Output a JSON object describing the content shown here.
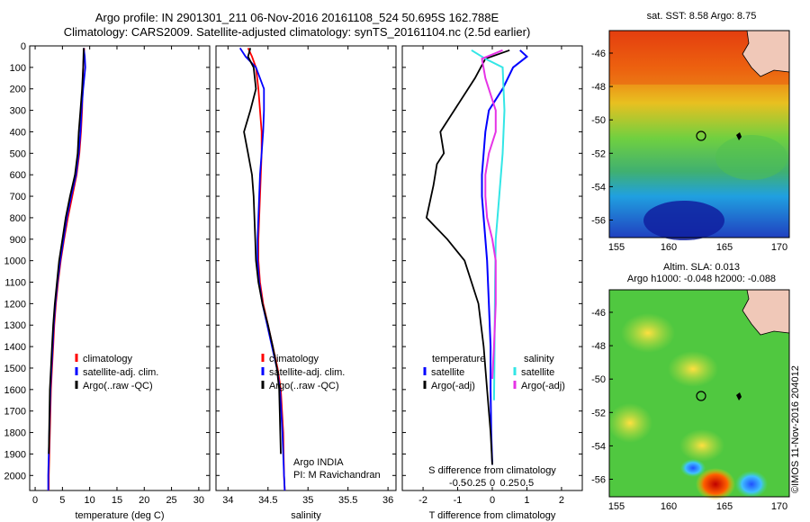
{
  "header": {
    "title_line1": "Argo profile: IN 2901301_211 06-Nov-2016 20161108_524 50.695S 162.788E",
    "title_line2": "Climatology: CARS2009. Satellite-adjusted climatology: synTS_20161104.nc (2.5d earlier)"
  },
  "credit": "©IMOS 11-Nov-2016 204012",
  "colors": {
    "climatology": "#ff0000",
    "satellite": "#0000ff",
    "argo": "#000000",
    "satellite_salinity": "#33e6e6",
    "argo_salinity": "#e633e6"
  },
  "chart_data": [
    {
      "type": "line",
      "id": "temperature",
      "xlabel": "temperature (deg C)",
      "ylabel": "",
      "xlim": [
        -1,
        32
      ],
      "ylim": [
        2070,
        0
      ],
      "xticks": [
        0,
        5,
        10,
        15,
        20,
        25,
        30
      ],
      "yticks": [
        0,
        100,
        200,
        300,
        400,
        500,
        600,
        700,
        800,
        900,
        1000,
        1100,
        1200,
        1300,
        1400,
        1500,
        1600,
        1700,
        1800,
        1900,
        2000
      ],
      "legend": [
        "climatology",
        "satellite-adj. clim.",
        "Argo(..raw -QC)"
      ],
      "legend_position": "lower-right",
      "series": [
        {
          "name": "climatology",
          "color": "#ff0000",
          "x": [
            9.0,
            8.9,
            8.8,
            8.7,
            8.6,
            8.4,
            8.1,
            7.6,
            6.8,
            6.0,
            5.3,
            4.7,
            4.2,
            3.8,
            3.5,
            3.3,
            3.1,
            2.9,
            2.7,
            2.5,
            2.5
          ],
          "y": [
            10,
            50,
            100,
            200,
            300,
            400,
            500,
            600,
            700,
            800,
            900,
            1000,
            1100,
            1200,
            1300,
            1400,
            1500,
            1600,
            1800,
            2000,
            2070
          ]
        },
        {
          "name": "satellite-adj. clim.",
          "color": "#0000ff",
          "x": [
            8.9,
            9.1,
            9.2,
            8.8,
            8.5,
            8.3,
            8.0,
            7.5,
            6.6,
            5.8,
            5.2,
            4.6,
            4.1,
            3.7,
            3.4,
            3.2,
            3.0,
            2.8,
            2.6,
            2.4,
            2.4
          ],
          "y": [
            10,
            50,
            100,
            200,
            300,
            400,
            500,
            600,
            700,
            800,
            900,
            1000,
            1100,
            1200,
            1300,
            1400,
            1500,
            1600,
            1800,
            2000,
            2070
          ]
        },
        {
          "name": "Argo(..raw -QC)",
          "color": "#000000",
          "x": [
            8.9,
            8.8,
            8.6,
            8.3,
            8.0,
            7.8,
            7.3,
            6.4,
            5.6,
            5.0,
            4.4,
            4.0,
            3.6,
            3.3,
            3.1,
            2.9,
            2.7,
            2.5
          ],
          "y": [
            10,
            100,
            200,
            300,
            400,
            500,
            600,
            700,
            800,
            900,
            1000,
            1100,
            1200,
            1300,
            1400,
            1500,
            1600,
            1900
          ]
        }
      ]
    },
    {
      "type": "line",
      "id": "salinity",
      "xlabel": "salinity",
      "xlim": [
        33.85,
        36.1
      ],
      "ylim": [
        2070,
        0
      ],
      "xticks": [
        34,
        34.5,
        35,
        35.5,
        36
      ],
      "legend": [
        "climatology",
        "satellite-adj. clim.",
        "Argo(..raw -QC)"
      ],
      "legend_position": "lower-right",
      "annotations": [
        "Argo INDIA",
        "PI: M Ravichandran"
      ],
      "series": [
        {
          "name": "climatology",
          "color": "#ff0000",
          "x": [
            34.25,
            34.3,
            34.35,
            34.38,
            34.4,
            34.42,
            34.42,
            34.41,
            34.4,
            34.39,
            34.38,
            34.38,
            34.4,
            34.44,
            34.5,
            34.56,
            34.62,
            34.66,
            34.69,
            34.7,
            34.71
          ],
          "y": [
            10,
            50,
            100,
            200,
            300,
            400,
            500,
            600,
            700,
            800,
            900,
            1000,
            1100,
            1200,
            1300,
            1400,
            1500,
            1600,
            1800,
            2000,
            2070
          ]
        },
        {
          "name": "satellite-adj. clim.",
          "color": "#0000ff",
          "x": [
            34.15,
            34.22,
            34.35,
            34.45,
            34.45,
            34.44,
            34.42,
            34.4,
            34.39,
            34.38,
            34.37,
            34.37,
            34.39,
            34.43,
            34.49,
            34.55,
            34.61,
            34.65,
            34.68,
            34.7,
            34.71
          ],
          "y": [
            10,
            50,
            100,
            200,
            300,
            400,
            500,
            600,
            700,
            800,
            900,
            1000,
            1100,
            1200,
            1300,
            1400,
            1500,
            1600,
            1800,
            2000,
            2070
          ]
        },
        {
          "name": "Argo(..raw -QC)",
          "color": "#000000",
          "x": [
            34.28,
            34.25,
            34.32,
            34.35,
            34.28,
            34.2,
            34.25,
            34.3,
            34.32,
            34.33,
            34.34,
            34.35,
            34.38,
            34.43,
            34.5,
            34.56,
            34.61,
            34.64,
            34.66
          ],
          "y": [
            10,
            50,
            100,
            200,
            300,
            400,
            500,
            600,
            700,
            800,
            900,
            1000,
            1100,
            1200,
            1300,
            1400,
            1500,
            1600,
            1900
          ]
        }
      ]
    },
    {
      "type": "line",
      "id": "difference",
      "xlabel": "T difference from climatology",
      "xlabel_top": "S difference from climatology",
      "xlim": [
        -2.6,
        2.6
      ],
      "ylim": [
        2070,
        0
      ],
      "xticks": [
        -2,
        -1,
        0,
        1,
        2
      ],
      "xticks_salinity": [
        -0.5,
        -0.25,
        0,
        0.25,
        0.5
      ],
      "legend_temperature_heading": "temperature",
      "legend_salinity_heading": "salinity",
      "legend": [
        "satellite",
        "Argo(-adj)",
        "satellite",
        "Argo(-adj)"
      ],
      "legend_position": "lower-center",
      "series": [
        {
          "name": "satellite",
          "color": "#0000ff",
          "x": [
            0.8,
            1.0,
            0.6,
            0.3,
            -0.1,
            -0.2,
            -0.25,
            -0.3,
            -0.3,
            -0.25,
            -0.2,
            -0.15,
            -0.1,
            -0.05,
            -0.05,
            -0.03,
            0
          ],
          "y": [
            20,
            50,
            100,
            200,
            300,
            400,
            500,
            600,
            700,
            800,
            900,
            1000,
            1200,
            1400,
            1600,
            1800,
            1950
          ]
        },
        {
          "name": "Argo(-adj)",
          "color": "#000000",
          "x": [
            0.5,
            -0.2,
            -0.5,
            -1.1,
            -1.5,
            -1.4,
            -1.6,
            -1.7,
            -1.9,
            -1.3,
            -0.8,
            -0.6,
            -0.4,
            -0.25,
            -0.15,
            -0.05,
            0
          ],
          "y": [
            20,
            60,
            150,
            300,
            400,
            500,
            550,
            650,
            800,
            900,
            1000,
            1100,
            1200,
            1400,
            1600,
            1800,
            1950
          ]
        },
        {
          "name": "satellite",
          "color": "#33e6e6",
          "x": [
            -0.6,
            -0.2,
            0.3,
            0.35,
            0.3,
            0.2,
            0.1,
            0.08,
            0.07,
            0.06,
            0.05
          ],
          "y": [
            20,
            60,
            100,
            300,
            500,
            700,
            900,
            1100,
            1300,
            1500,
            1650
          ]
        },
        {
          "name": "Argo(-adj)",
          "color": "#e633e6",
          "x": [
            0.3,
            -0.3,
            -0.2,
            0.1,
            0.1,
            -0.1,
            -0.2,
            -0.2,
            -0.15,
            0,
            0.1,
            0.1,
            0.05,
            0
          ],
          "y": [
            20,
            60,
            150,
            300,
            400,
            500,
            600,
            700,
            800,
            900,
            1000,
            1200,
            1400,
            1550
          ]
        }
      ]
    }
  ],
  "maps": {
    "sst": {
      "title": "sat. SST: 8.58 Argo: 8.75",
      "xticks": [
        "155",
        "160",
        "165",
        "170"
      ],
      "yticks": [
        "-46",
        "-48",
        "-50",
        "-52",
        "-54",
        "-56"
      ]
    },
    "sla": {
      "title_line1": "Altim. SLA: 0.013",
      "title_line2": "Argo h1000: -0.048 h2000: -0.088",
      "xticks": [
        "155",
        "160",
        "165",
        "170"
      ],
      "yticks": [
        "-46",
        "-48",
        "-50",
        "-52",
        "-54",
        "-56"
      ]
    }
  }
}
